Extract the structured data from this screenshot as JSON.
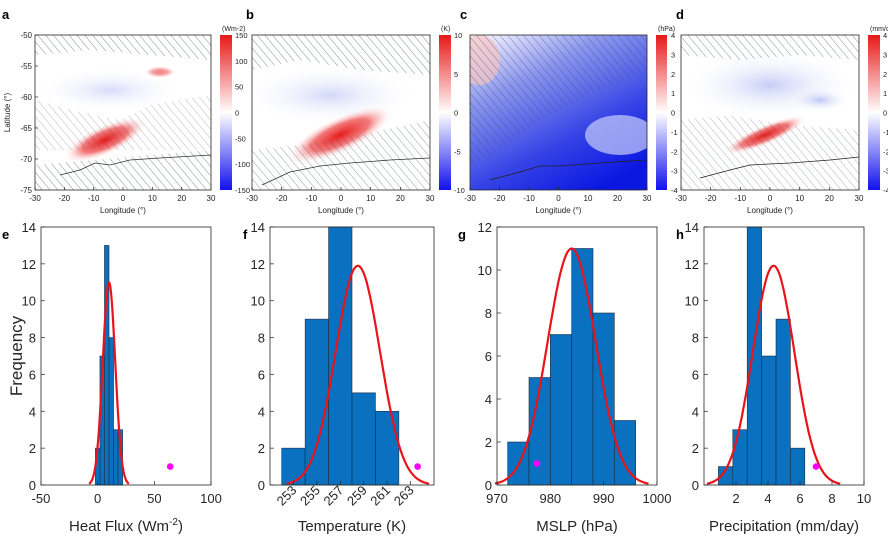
{
  "colors": {
    "bar_fill": "#0a70c0",
    "bar_edge": "#1f2f44",
    "fit_curve": "#e8141b",
    "marker": "#ff00ff",
    "map_red": "#ee2020",
    "map_blue": "#1b2ae8",
    "axis": "#262626"
  },
  "maps": [
    {
      "panel": "a",
      "colorbar_unit": "(Wm-2)",
      "colorbar_ticks": [
        "150",
        "100",
        "50",
        "0",
        "-50",
        "-100",
        "-150"
      ],
      "xlabel": "Longitude (°)",
      "ylabel": "Latitude (°)",
      "xticks": [
        "-30",
        "-20",
        "-10",
        "0",
        "10",
        "20",
        "30"
      ],
      "yticks": [
        "-50",
        "-55",
        "-60",
        "-65",
        "-70",
        "-75"
      ]
    },
    {
      "panel": "b",
      "colorbar_unit": "(K)",
      "colorbar_ticks": [
        "10",
        "5",
        "0",
        "-5",
        "-10"
      ],
      "xlabel": "Longitude (°)",
      "xticks": [
        "-30",
        "-20",
        "-10",
        "0",
        "10",
        "20",
        "30"
      ]
    },
    {
      "panel": "c",
      "colorbar_unit": "(hPa)",
      "colorbar_ticks": [
        "4",
        "3",
        "2",
        "1",
        "0",
        "-1",
        "-2",
        "-3",
        "-4"
      ],
      "xlabel": "Longitude (°)",
      "xticks": [
        "-30",
        "-20",
        "-10",
        "0",
        "10",
        "20",
        "30"
      ]
    },
    {
      "panel": "d",
      "colorbar_unit": "(mm/day)",
      "colorbar_ticks": [
        "4",
        "3",
        "2",
        "1",
        "0",
        "-1",
        "-2",
        "-3",
        "-4"
      ],
      "xlabel": "Longitude (°)",
      "xticks": [
        "-30",
        "-20",
        "-10",
        "0",
        "10",
        "20",
        "30"
      ]
    }
  ],
  "chart_data": [
    {
      "panel": "e",
      "type": "bar",
      "xlabel": "Heat Flux (Wm-2)",
      "ylabel": "Frequency",
      "xlim": [
        -50,
        100
      ],
      "ylim": [
        0,
        14
      ],
      "xticks": [
        "-50",
        "0",
        "50",
        "100"
      ],
      "yticks": [
        "0",
        "2",
        "4",
        "6",
        "8",
        "10",
        "12",
        "14"
      ],
      "bin_edges": [
        -2,
        2,
        6,
        10,
        14,
        18,
        22
      ],
      "counts": [
        2,
        7,
        13,
        8,
        3,
        3
      ],
      "fit": {
        "mean": 10,
        "sd": 5.5,
        "peak": 11
      },
      "marker": {
        "x": 64,
        "y": 1
      }
    },
    {
      "panel": "f",
      "type": "bar",
      "xlabel": "Temperature (K)",
      "xlim": [
        251,
        265
      ],
      "ylim": [
        0,
        14
      ],
      "xticks": [
        "253",
        "255",
        "257",
        "259",
        "261",
        "263"
      ],
      "yticks": [
        "0",
        "2",
        "4",
        "6",
        "8",
        "10",
        "12",
        "14"
      ],
      "bin_edges": [
        252,
        254,
        256,
        258,
        260,
        262
      ],
      "counts": [
        2,
        9,
        14,
        5,
        4
      ],
      "fit": {
        "mean": 258.5,
        "sd": 1.9,
        "peak": 11.9
      },
      "marker": {
        "x": 263.6,
        "y": 1
      }
    },
    {
      "panel": "g",
      "type": "bar",
      "xlabel": "MSLP (hPa)",
      "xlim": [
        970,
        1000
      ],
      "ylim": [
        0,
        12
      ],
      "xticks": [
        "970",
        "980",
        "990",
        "1000"
      ],
      "yticks": [
        "0",
        "2",
        "4",
        "6",
        "8",
        "10",
        "12"
      ],
      "bin_edges": [
        972,
        976,
        980,
        984,
        988,
        992,
        996
      ],
      "counts": [
        2,
        5,
        7,
        11,
        8,
        3
      ],
      "fit": {
        "mean": 984,
        "sd": 4.5,
        "peak": 11
      },
      "marker": {
        "x": 977.5,
        "y": 1
      }
    },
    {
      "panel": "h",
      "type": "bar",
      "xlabel": "Precipitation (mm/day)",
      "xlim": [
        0,
        10
      ],
      "ylim": [
        0,
        14
      ],
      "xticks": [
        "2",
        "4",
        "6",
        "8",
        "10"
      ],
      "yticks": [
        "0",
        "2",
        "4",
        "6",
        "8",
        "10",
        "12",
        "14"
      ],
      "bin_edges": [
        0.9,
        1.8,
        2.7,
        3.6,
        4.5,
        5.4,
        6.3
      ],
      "counts": [
        1,
        3,
        14,
        7,
        9,
        2
      ],
      "fit": {
        "mean": 4.35,
        "sd": 1.3,
        "peak": 11.9
      },
      "marker": {
        "x": 7,
        "y": 1
      }
    }
  ]
}
